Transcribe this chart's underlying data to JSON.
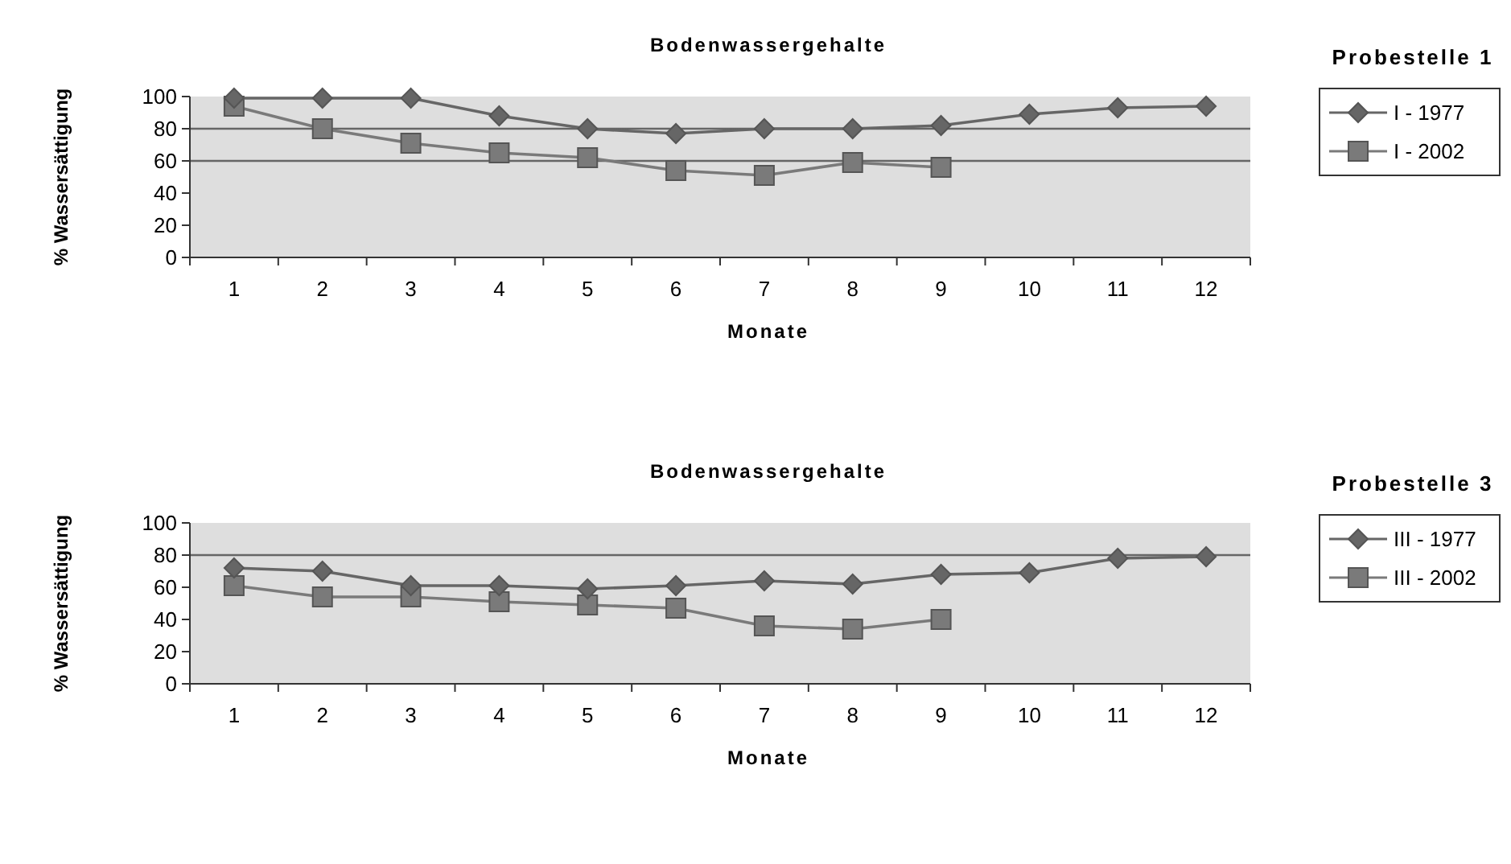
{
  "chart_data": [
    {
      "type": "line",
      "title": "Bodenwassergehalte",
      "xlabel": "Monate",
      "ylabel": "% Wassersättigung",
      "legend_title": "Probestelle 1",
      "categories": [
        "1",
        "2",
        "3",
        "4",
        "5",
        "6",
        "7",
        "8",
        "9",
        "10",
        "11",
        "12"
      ],
      "ylim": [
        0,
        100
      ],
      "yticks": [
        0,
        20,
        40,
        60,
        80,
        100
      ],
      "grid": false,
      "legend": "right",
      "line_style": "solid",
      "ref_lines": [
        {
          "axis": "y",
          "value": 80
        },
        {
          "axis": "y",
          "value": 60
        }
      ],
      "series": [
        {
          "name": "I - 1977",
          "color": "#666666",
          "marker": "diamond",
          "values": [
            99,
            99,
            99,
            88,
            80,
            77,
            80,
            80,
            82,
            89,
            93,
            94
          ]
        },
        {
          "name": "I - 2002",
          "color": "#7a7a7a",
          "marker": "square",
          "values": [
            94,
            80,
            71,
            65,
            62,
            54,
            51,
            59,
            56,
            null,
            null,
            null
          ]
        }
      ]
    },
    {
      "type": "line",
      "title": "Bodenwassergehalte",
      "xlabel": "Monate",
      "ylabel": "% Wassersättigung",
      "legend_title": "Probestelle 3",
      "categories": [
        "1",
        "2",
        "3",
        "4",
        "5",
        "6",
        "7",
        "8",
        "9",
        "10",
        "11",
        "12"
      ],
      "ylim": [
        0,
        100
      ],
      "yticks": [
        0,
        20,
        40,
        60,
        80,
        100
      ],
      "grid": false,
      "legend": "right",
      "line_style": "solid",
      "ref_lines": [
        {
          "axis": "y",
          "value": 80
        }
      ],
      "series": [
        {
          "name": "III - 1977",
          "color": "#666666",
          "marker": "diamond",
          "values": [
            72,
            70,
            61,
            61,
            59,
            61,
            64,
            62,
            68,
            69,
            78,
            79
          ]
        },
        {
          "name": "III - 2002",
          "color": "#7a7a7a",
          "marker": "square",
          "values": [
            61,
            54,
            54,
            51,
            49,
            47,
            36,
            34,
            40,
            null,
            null,
            null
          ]
        }
      ]
    }
  ]
}
